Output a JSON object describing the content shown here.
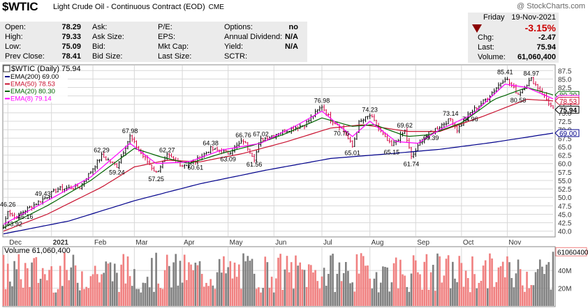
{
  "header": {
    "symbol": "$WTIC",
    "description": "Light Crude Oil - Continuous Contract (EOD)",
    "exchange": "CME",
    "copyright": "@ StockCharts.com"
  },
  "quote": {
    "open_label": "Open:",
    "open": "78.29",
    "high_label": "High:",
    "high": "79.33",
    "low_label": "Low:",
    "low": "75.09",
    "prev_label": "Prev Close:",
    "prev": "78.41",
    "ask_label": "Ask:",
    "ask": "",
    "ask_size_label": "Ask Size:",
    "ask_size": "",
    "bid_label": "Bid:",
    "bid": "",
    "bid_size_label": "Bid Size:",
    "bid_size": "",
    "pe_label": "P/E:",
    "pe": "",
    "eps_label": "EPS:",
    "eps": "",
    "mktcap_label": "Mkt Cap:",
    "mktcap": "",
    "lastsize_label": "Last Size:",
    "lastsize": "",
    "options_label": "Options:",
    "options": "no",
    "dividend_label": "Annual Dividend:",
    "dividend": "N/A",
    "yield_label": "Yield:",
    "yield": "N/A",
    "sctr_label": "SCTR:",
    "sctr": ""
  },
  "summary": {
    "day": "Friday",
    "date": "19-Nov-2021",
    "pct_change": "-3.15%",
    "chg_label": "Chg:",
    "chg": "-2.47",
    "last_label": "Last:",
    "last": "75.94",
    "volume_label": "Volume:",
    "volume": "61,060,400"
  },
  "colors": {
    "ema200": "#00008b",
    "ema50": "#c8102e",
    "ema20": "#006400",
    "ema8": "#ff00ff",
    "up_bar": "#f08080",
    "down_bar": "#808080",
    "price": "#000000",
    "grid": "#d8d8d8"
  },
  "chart_data": {
    "type": "line",
    "title": "$WTIC (Daily) 75.94",
    "legend": [
      {
        "label": "EMA(200) 69.00",
        "color": "#00008b"
      },
      {
        "label": "EMA(50) 78.53",
        "color": "#c8102e"
      },
      {
        "label": "EMA(20) 80.30",
        "color": "#006400"
      },
      {
        "label": "EMA(8) 79.14",
        "color": "#ff00ff"
      }
    ],
    "legend_position": "top-left",
    "y_ticks": [
      40.0,
      42.5,
      45.0,
      47.5,
      50.0,
      52.5,
      55.0,
      57.5,
      60.0,
      62.5,
      65.0,
      67.5,
      70.0,
      72.5,
      75.0,
      77.5,
      80.0,
      82.5,
      85.0,
      87.5
    ],
    "y_tick_labels": [
      "40.0",
      "42.5",
      "45.0",
      "47.5",
      "50.0",
      "52.5",
      "55.0",
      "57.5",
      "60.0",
      "62.5",
      "65.0",
      "67.5",
      "70.0",
      "72.5",
      "75.0",
      "77.5",
      "80.0",
      "82.5",
      "85.0",
      "87.5"
    ],
    "ylim": [
      38.5,
      89.0
    ],
    "x_months": [
      "Dec",
      "2021",
      "Feb",
      "Mar",
      "Apr",
      "May",
      "Jun",
      "Jul",
      "Aug",
      "Sep",
      "Oct",
      "Nov"
    ],
    "grid": true,
    "axis_side": "right",
    "price_points": [
      [
        0,
        41.0
      ],
      [
        2,
        46.26
      ],
      [
        5,
        43.92
      ],
      [
        10,
        46.16
      ],
      [
        18,
        49.43
      ],
      [
        25,
        52.5
      ],
      [
        35,
        53.0
      ],
      [
        45,
        62.29
      ],
      [
        52,
        59.24
      ],
      [
        58,
        67.98
      ],
      [
        63,
        63.0
      ],
      [
        70,
        57.25
      ],
      [
        75,
        62.27
      ],
      [
        82,
        59.5
      ],
      [
        88,
        60.61
      ],
      [
        95,
        64.38
      ],
      [
        103,
        63.09
      ],
      [
        110,
        66.76
      ],
      [
        115,
        61.56
      ],
      [
        118,
        67.02
      ],
      [
        128,
        69.5
      ],
      [
        138,
        71.5
      ],
      [
        146,
        76.98
      ],
      [
        150,
        73.0
      ],
      [
        155,
        70.76
      ],
      [
        160,
        65.01
      ],
      [
        163,
        72.0
      ],
      [
        168,
        74.23
      ],
      [
        175,
        67.5
      ],
      [
        178,
        65.15
      ],
      [
        184,
        69.62
      ],
      [
        187,
        61.74
      ],
      [
        192,
        67.0
      ],
      [
        196,
        69.39
      ],
      [
        205,
        73.14
      ],
      [
        208,
        70.0
      ],
      [
        214,
        74.96
      ],
      [
        222,
        79.5
      ],
      [
        230,
        85.41
      ],
      [
        236,
        80.58
      ],
      [
        242,
        84.97
      ],
      [
        248,
        80.0
      ],
      [
        252,
        75.94
      ]
    ],
    "ema200": [
      [
        0,
        39.2
      ],
      [
        30,
        43.0
      ],
      [
        60,
        49.0
      ],
      [
        90,
        54.0
      ],
      [
        120,
        58.0
      ],
      [
        150,
        61.5
      ],
      [
        175,
        62.8
      ],
      [
        200,
        64.2
      ],
      [
        225,
        66.3
      ],
      [
        252,
        69.0
      ]
    ],
    "ema50": [
      [
        0,
        40.0
      ],
      [
        20,
        45.0
      ],
      [
        45,
        53.0
      ],
      [
        60,
        59.0
      ],
      [
        75,
        61.0
      ],
      [
        90,
        60.5
      ],
      [
        110,
        63.0
      ],
      [
        130,
        66.5
      ],
      [
        150,
        70.5
      ],
      [
        165,
        71.5
      ],
      [
        185,
        69.5
      ],
      [
        200,
        69.5
      ],
      [
        220,
        74.0
      ],
      [
        240,
        79.0
      ],
      [
        252,
        78.53
      ]
    ],
    "ema20": [
      [
        0,
        41.0
      ],
      [
        20,
        47.5
      ],
      [
        40,
        55.0
      ],
      [
        60,
        64.5
      ],
      [
        72,
        62.0
      ],
      [
        85,
        60.0
      ],
      [
        100,
        63.0
      ],
      [
        115,
        65.5
      ],
      [
        130,
        69.0
      ],
      [
        146,
        73.5
      ],
      [
        160,
        71.0
      ],
      [
        170,
        71.5
      ],
      [
        185,
        68.0
      ],
      [
        195,
        68.5
      ],
      [
        210,
        72.0
      ],
      [
        225,
        79.0
      ],
      [
        240,
        82.5
      ],
      [
        252,
        80.3
      ]
    ],
    "ema8": [
      [
        0,
        42.0
      ],
      [
        20,
        49.0
      ],
      [
        40,
        56.0
      ],
      [
        58,
        66.0
      ],
      [
        70,
        60.0
      ],
      [
        85,
        60.5
      ],
      [
        100,
        64.0
      ],
      [
        118,
        66.0
      ],
      [
        135,
        71.5
      ],
      [
        146,
        75.5
      ],
      [
        160,
        68.0
      ],
      [
        168,
        72.5
      ],
      [
        180,
        66.5
      ],
      [
        190,
        66.0
      ],
      [
        200,
        70.0
      ],
      [
        215,
        74.5
      ],
      [
        230,
        83.5
      ],
      [
        240,
        82.5
      ],
      [
        252,
        79.14
      ]
    ],
    "annotations": [
      {
        "i": 2,
        "v": 46.26,
        "text": "46.26",
        "pos": "above"
      },
      {
        "i": 5,
        "v": 43.92,
        "text": "43.92",
        "pos": "below"
      },
      {
        "i": 10,
        "v": 46.16,
        "text": "46.16",
        "pos": "below"
      },
      {
        "i": 18,
        "v": 49.43,
        "text": "49.43",
        "pos": "above"
      },
      {
        "i": 45,
        "v": 62.29,
        "text": "62.29",
        "pos": "above"
      },
      {
        "i": 52,
        "v": 59.24,
        "text": "59.24",
        "pos": "below"
      },
      {
        "i": 58,
        "v": 67.98,
        "text": "67.98",
        "pos": "above"
      },
      {
        "i": 70,
        "v": 57.25,
        "text": "57.25",
        "pos": "below"
      },
      {
        "i": 75,
        "v": 62.27,
        "text": "62.27",
        "pos": "above"
      },
      {
        "i": 88,
        "v": 60.61,
        "text": "60.61",
        "pos": "below"
      },
      {
        "i": 95,
        "v": 64.38,
        "text": "64.38",
        "pos": "above"
      },
      {
        "i": 103,
        "v": 63.09,
        "text": "63.09",
        "pos": "below"
      },
      {
        "i": 110,
        "v": 66.76,
        "text": "66.76",
        "pos": "above"
      },
      {
        "i": 115,
        "v": 61.56,
        "text": "61.56",
        "pos": "below"
      },
      {
        "i": 118,
        "v": 67.02,
        "text": "67.02",
        "pos": "above"
      },
      {
        "i": 146,
        "v": 76.98,
        "text": "76.98",
        "pos": "above"
      },
      {
        "i": 155,
        "v": 70.76,
        "text": "70.76",
        "pos": "below"
      },
      {
        "i": 160,
        "v": 65.01,
        "text": "65.01",
        "pos": "below"
      },
      {
        "i": 168,
        "v": 74.23,
        "text": "74.23",
        "pos": "above"
      },
      {
        "i": 178,
        "v": 65.15,
        "text": "65.15",
        "pos": "below"
      },
      {
        "i": 184,
        "v": 69.62,
        "text": "69.62",
        "pos": "above"
      },
      {
        "i": 187,
        "v": 61.74,
        "text": "61.74",
        "pos": "below"
      },
      {
        "i": 196,
        "v": 69.39,
        "text": "69.39",
        "pos": "below"
      },
      {
        "i": 205,
        "v": 73.14,
        "text": "73.14",
        "pos": "above"
      },
      {
        "i": 214,
        "v": 74.96,
        "text": "74.96",
        "pos": "below"
      },
      {
        "i": 230,
        "v": 85.41,
        "text": "85.41",
        "pos": "above"
      },
      {
        "i": 236,
        "v": 80.58,
        "text": "80.58",
        "pos": "below"
      },
      {
        "i": 242,
        "v": 84.97,
        "text": "84.97",
        "pos": "above"
      }
    ],
    "price_tags": [
      {
        "text": "80.30",
        "value": 80.3,
        "color": "#006400",
        "bold": false
      },
      {
        "text": "79.14",
        "value": 79.14,
        "color": "#ff00ff",
        "bold": false
      },
      {
        "text": "78.53",
        "value": 78.53,
        "color": "#c8102e",
        "bold": false
      },
      {
        "text": "75.94",
        "value": 75.94,
        "color": "#000000",
        "bold": true
      },
      {
        "text": "69.00",
        "value": 69.0,
        "color": "#00008b",
        "bold": false
      }
    ],
    "volume": {
      "title": "Volume 61,060,400",
      "y_ticks": [
        20,
        40
      ],
      "y_tick_labels": [
        "20M",
        "40M"
      ],
      "ymax": 66,
      "last_label": "61060400",
      "last_value": 61.06
    }
  }
}
